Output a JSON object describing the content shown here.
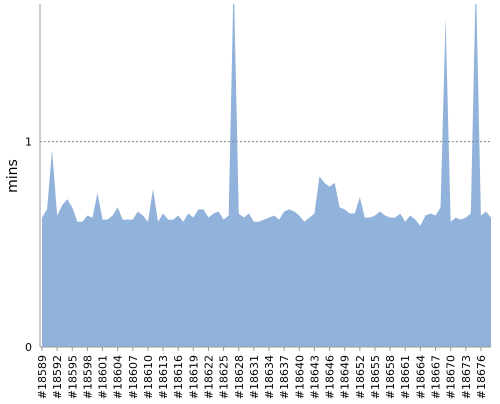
{
  "chart_data": {
    "type": "area",
    "y_label": "mins",
    "categories": [
      "#18589",
      null,
      null,
      "#18592",
      null,
      null,
      "#18595",
      null,
      null,
      "#18598",
      null,
      null,
      "#18601",
      null,
      null,
      "#18604",
      null,
      null,
      "#18607",
      null,
      null,
      "#18610",
      null,
      null,
      "#18613",
      null,
      null,
      "#18616",
      null,
      null,
      "#18619",
      null,
      null,
      "#18622",
      null,
      null,
      "#18625",
      null,
      null,
      "#18628",
      null,
      null,
      "#18631",
      null,
      null,
      "#18634",
      null,
      null,
      "#18637",
      null,
      null,
      "#18640",
      null,
      null,
      "#18643",
      null,
      null,
      "#18646",
      null,
      null,
      "#18649",
      null,
      null,
      "#18652",
      null,
      null,
      "#18655",
      null,
      null,
      "#18658",
      null,
      null,
      "#18661",
      null,
      null,
      "#18664",
      null,
      null,
      "#18667",
      null,
      null,
      "#18670",
      null,
      null,
      "#18673",
      null,
      null,
      "#18676",
      null,
      null
    ],
    "values": [
      0.63,
      0.67,
      0.96,
      0.64,
      0.69,
      0.72,
      0.68,
      0.61,
      0.61,
      0.64,
      0.63,
      0.75,
      0.62,
      0.62,
      0.64,
      0.68,
      0.62,
      0.62,
      0.62,
      0.66,
      0.64,
      0.61,
      0.77,
      0.61,
      0.65,
      0.62,
      0.62,
      0.64,
      0.61,
      0.65,
      0.63,
      0.67,
      0.67,
      0.63,
      0.65,
      0.66,
      0.62,
      0.64,
      1.8,
      0.65,
      0.63,
      0.65,
      0.61,
      0.61,
      0.62,
      0.63,
      0.64,
      0.62,
      0.66,
      0.67,
      0.66,
      0.64,
      0.61,
      0.63,
      0.65,
      0.83,
      0.8,
      0.78,
      0.8,
      0.68,
      0.67,
      0.65,
      0.65,
      0.73,
      0.63,
      0.63,
      0.64,
      0.66,
      0.64,
      0.63,
      0.63,
      0.65,
      0.61,
      0.64,
      0.62,
      0.59,
      0.64,
      0.65,
      0.64,
      0.68,
      1.6,
      0.61,
      0.63,
      0.62,
      0.63,
      0.65,
      1.8,
      0.64,
      0.66,
      0.63
    ],
    "color": "#91b2db",
    "ylim": [
      0,
      1.67
    ],
    "yticks": [
      0,
      1
    ],
    "grid": true
  }
}
